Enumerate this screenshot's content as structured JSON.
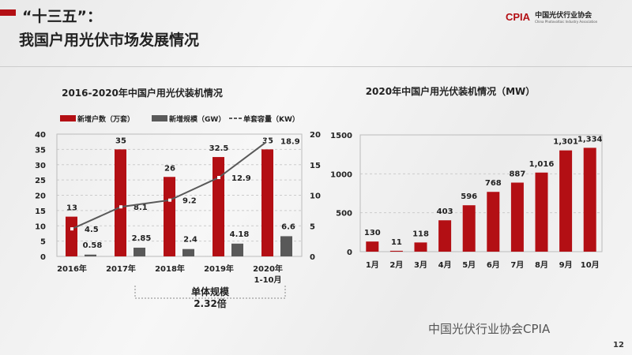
{
  "header": {
    "title_line1": "“十三五”：",
    "title_line2": "我国户用光伏市场发展情况",
    "logo_mark": "CPIA",
    "logo_cn": "中国光伏行业协会",
    "logo_en": "China Photovoltaic Industry Association"
  },
  "footer": {
    "watermark": "中国光伏行业协会CPIA",
    "page_number": "12"
  },
  "colors": {
    "red": "#b30f14",
    "gray": "#595959",
    "line": "#595959"
  },
  "chart_data": [
    {
      "type": "bar",
      "title": "2016-2020年中国户用光伏装机情况",
      "categories": [
        "2016年",
        "2017年",
        "2018年",
        "2019年",
        "2020年"
      ],
      "category_sub": [
        "",
        "",
        "",
        "",
        "1-10月"
      ],
      "series": [
        {
          "name": "新增户数（万套）",
          "type": "bar",
          "axis": "left",
          "values": [
            13,
            35,
            26,
            32.5,
            35
          ],
          "labels": [
            "13",
            "35",
            "26",
            "32.5",
            "35"
          ]
        },
        {
          "name": "新增规模（GW）",
          "type": "bar",
          "axis": "left",
          "values": [
            0.58,
            2.85,
            2.4,
            4.18,
            6.6
          ],
          "labels": [
            "0.58",
            "2.85",
            "2.4",
            "4.18",
            "6.6"
          ]
        },
        {
          "name": "单套容量（KW）",
          "type": "line",
          "axis": "right",
          "values": [
            4.5,
            8.1,
            9.2,
            12.9,
            18.9
          ],
          "labels": [
            "4.5",
            "8.1",
            "9.2",
            "12.9",
            "18.9"
          ]
        }
      ],
      "ylim_left": [
        0,
        40
      ],
      "yticks_left": [
        "0",
        "5",
        "10",
        "15",
        "20",
        "25",
        "30",
        "35",
        "40"
      ],
      "ylim_right": [
        0,
        20
      ],
      "yticks_right": [
        "0",
        "5",
        "10",
        "15",
        "20"
      ],
      "annotation": {
        "line1": "单体规模",
        "line2": "2.32倍"
      },
      "legend": "top"
    },
    {
      "type": "bar",
      "title": "2020年中国户用光伏装机情况（MW）",
      "categories": [
        "1月",
        "2月",
        "3月",
        "4月",
        "5月",
        "6月",
        "7月",
        "8月",
        "9月",
        "10月"
      ],
      "values": [
        130,
        11,
        118,
        403,
        596,
        768,
        887,
        1016,
        1301,
        1334
      ],
      "labels": [
        "130",
        "11",
        "118",
        "403",
        "596",
        "768",
        "887",
        "1,016",
        "1,301",
        "1,334"
      ],
      "ylim": [
        0,
        1500
      ],
      "yticks": [
        "0",
        "500",
        "1000",
        "1500"
      ]
    }
  ]
}
